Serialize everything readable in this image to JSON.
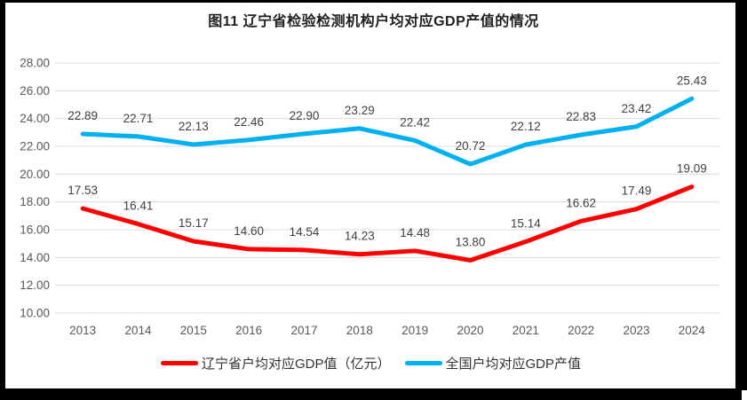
{
  "chart_data": {
    "type": "line",
    "title": "图11 辽宁省检验检测机构户均对应GDP产值的情况",
    "categories": [
      "2013",
      "2014",
      "2015",
      "2016",
      "2017",
      "2018",
      "2019",
      "2020",
      "2021",
      "2022",
      "2023",
      "2024"
    ],
    "series": [
      {
        "name": "辽宁省户均对应GDP值（亿元）",
        "color": "#FF0000",
        "values": [
          17.53,
          16.41,
          15.17,
          14.6,
          14.54,
          14.23,
          14.48,
          13.8,
          15.14,
          16.62,
          17.49,
          19.09
        ]
      },
      {
        "name": "全国户均对应GDP产值",
        "color": "#00B0F0",
        "values": [
          22.89,
          22.71,
          22.13,
          22.46,
          22.9,
          23.29,
          22.42,
          20.72,
          22.12,
          22.83,
          23.42,
          25.43
        ]
      }
    ],
    "xlabel": "",
    "ylabel": "",
    "ylim": [
      10,
      28
    ],
    "ytick_step": 2,
    "value_decimals": 2,
    "grid": true,
    "data_labels": true,
    "legend_position": "bottom"
  },
  "colors": {
    "grid": "#D9D9D9",
    "axis_text": "#595959",
    "data_label_text": "#404040",
    "title_text": "#1F1F1F",
    "frame": "#000000",
    "background": "#FFFFFF"
  }
}
